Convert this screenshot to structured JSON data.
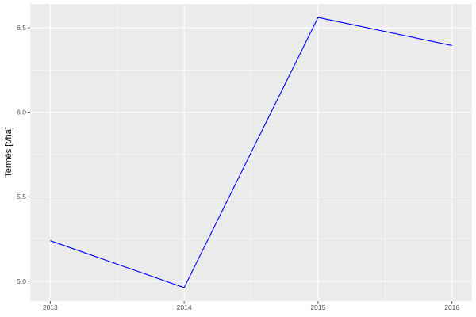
{
  "chart_data": {
    "type": "line",
    "title": "",
    "xlabel": "",
    "ylabel": "Termés [t/ha]",
    "x": [
      2013,
      2014,
      2015,
      2016
    ],
    "series": [
      {
        "values": [
          5.24,
          4.962,
          6.561,
          6.395
        ],
        "color": "#0000FF"
      }
    ],
    "xticks": [
      2013,
      2014,
      2015,
      2016
    ],
    "xtick_labels": [
      "2013",
      "2014",
      "2015",
      "2016"
    ],
    "yticks": [
      5.0,
      5.5,
      6.0,
      6.5
    ],
    "ytick_labels": [
      "5.0",
      "5.5",
      "6.0",
      "6.5"
    ],
    "xlim": [
      2012.85,
      2016.15
    ],
    "ylim": [
      4.882,
      6.641
    ],
    "grid": true,
    "panel_background": "#EBEBEB",
    "grid_color": "#FFFFFF"
  }
}
